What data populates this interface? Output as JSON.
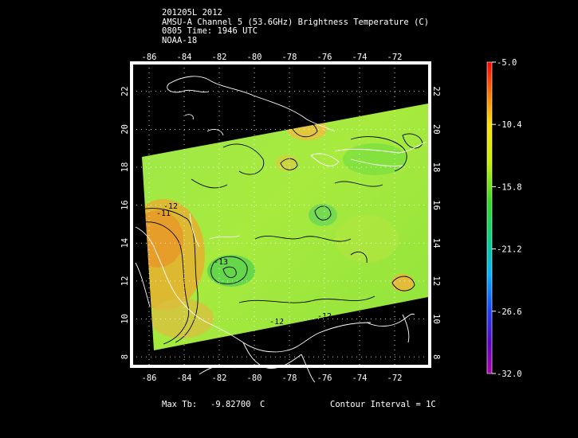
{
  "header": {
    "line1": "201205L 2012",
    "line2": "AMSU-A Channel 5 (53.6GHz) Brightness Temperature (C)",
    "line3": "0805 Time: 1946 UTC",
    "line4": "NOAA-18"
  },
  "map": {
    "lon_ticks": [
      "-86",
      "-84",
      "-82",
      "-80",
      "-78",
      "-76",
      "-74",
      "-72"
    ],
    "lat_ticks": [
      "8",
      "10",
      "12",
      "14",
      "16",
      "18",
      "20",
      "22"
    ],
    "lon_range": [
      -87,
      -70
    ],
    "lat_range": [
      7.5,
      23.5
    ],
    "contour_labels": [
      "-12",
      "-11",
      "-13",
      "-12",
      "-12"
    ]
  },
  "colorbar": {
    "labels": [
      "-5.0",
      "-10.4",
      "-15.8",
      "-21.2",
      "-26.6",
      "-32.0"
    ],
    "min": -32.0,
    "max": -5.0
  },
  "footer": {
    "max_label": "Max Tb:",
    "max_value": "-9.82700",
    "max_unit": "C",
    "contour_text": "Contour Interval = 1C"
  }
}
